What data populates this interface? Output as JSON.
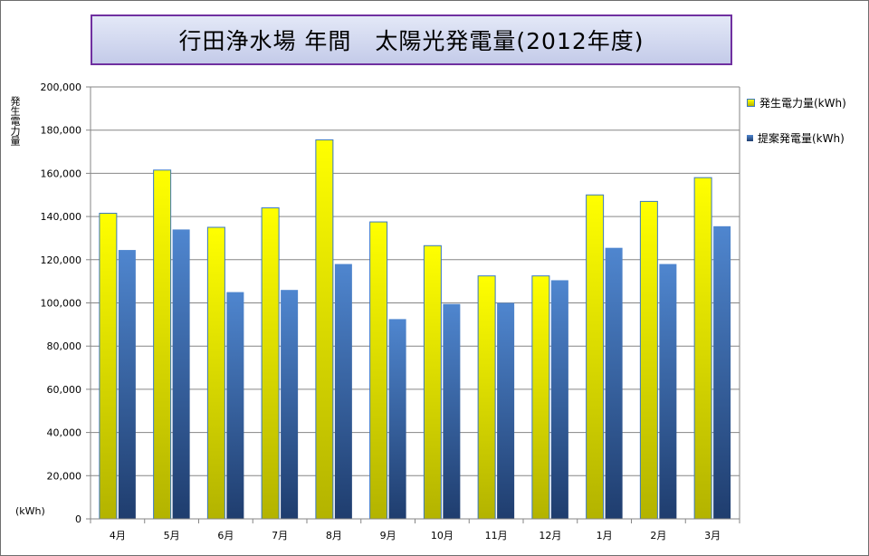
{
  "title": "行田浄水場 年間　太陽光発電量(2012年度)",
  "colors": {
    "generated": "#ffff00",
    "generated_bottom": "#b3b300",
    "generated_border": "#3a78c2",
    "proposed": "#4f86cf",
    "proposed_bottom": "#1f3d6e",
    "title_border": "#7030a0",
    "grid": "#868686"
  },
  "chart_data": {
    "type": "bar",
    "title": "行田浄水場 年間　太陽光発電量(2012年度)",
    "ylabel": "発生電力量",
    "unit_label": "(kWh)",
    "ylim": [
      0,
      200000
    ],
    "yticks": [
      0,
      20000,
      40000,
      60000,
      80000,
      100000,
      120000,
      140000,
      160000,
      180000,
      200000
    ],
    "ytick_labels": [
      "0",
      "20,000",
      "40,000",
      "60,000",
      "80,000",
      "100,000",
      "120,000",
      "140,000",
      "160,000",
      "180,000",
      "200,000"
    ],
    "categories": [
      "4月",
      "5月",
      "6月",
      "7月",
      "8月",
      "9月",
      "10月",
      "11月",
      "12月",
      "1月",
      "2月",
      "3月"
    ],
    "grid": true,
    "legend_position": "right",
    "series": [
      {
        "name": "発生電力量(kWh)",
        "values": [
          141500,
          161500,
          135000,
          144000,
          175500,
          137500,
          126500,
          112500,
          112500,
          150000,
          147000,
          158000
        ]
      },
      {
        "name": "提案発電量(kWh)",
        "values": [
          124500,
          134000,
          105000,
          106000,
          118000,
          92500,
          99500,
          100000,
          110500,
          125500,
          118000,
          135500
        ]
      }
    ]
  }
}
